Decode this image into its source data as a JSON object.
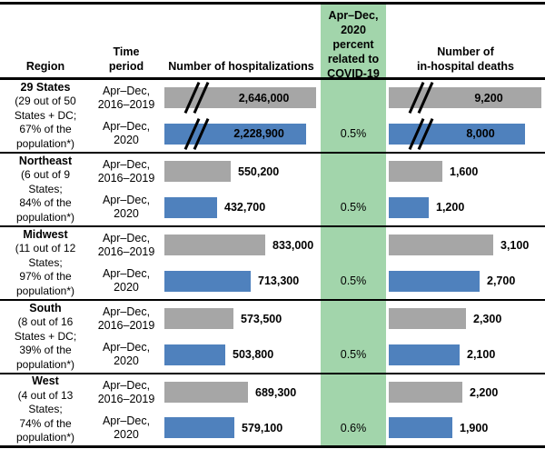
{
  "headers": {
    "region": "Region",
    "time_period": "Time\nperiod",
    "hospitalizations": "Number of hospitalizations",
    "covid_percent": "Apr–Dec,\n2020\npercent\nrelated to\nCOVID-19",
    "deaths": "Number of\nin-hospital deaths"
  },
  "colors": {
    "bar_2016_2019": "#a6a6a6",
    "bar_2020": "#4f81bd",
    "covid_column_bg": "#a2d5ab",
    "rule_lines": "#000000"
  },
  "regions": [
    {
      "name": "29 States",
      "details": "(29 out of 50\nStates + DC;\n67% of the\npopulation*)",
      "axis_break": true,
      "rows": [
        {
          "period": "Apr–Dec,\n2016–2019",
          "hospitalizations": "2,646,000",
          "deaths": "9,200",
          "covid_percent": ""
        },
        {
          "period": "Apr–Dec,\n2020",
          "hospitalizations": "2,228,900",
          "deaths": "8,000",
          "covid_percent": "0.5%"
        }
      ]
    },
    {
      "name": "Northeast",
      "details": "(6 out of 9\nStates;\n84% of the\npopulation*)",
      "axis_break": false,
      "rows": [
        {
          "period": "Apr–Dec,\n2016–2019",
          "hospitalizations": "550,200",
          "deaths": "1,600",
          "covid_percent": ""
        },
        {
          "period": "Apr–Dec,\n2020",
          "hospitalizations": "432,700",
          "deaths": "1,200",
          "covid_percent": "0.5%"
        }
      ]
    },
    {
      "name": "Midwest",
      "details": "(11 out of 12\nStates;\n97% of the\npopulation*)",
      "axis_break": false,
      "rows": [
        {
          "period": "Apr–Dec,\n2016–2019",
          "hospitalizations": "833,000",
          "deaths": "3,100",
          "covid_percent": ""
        },
        {
          "period": "Apr–Dec,\n2020",
          "hospitalizations": "713,300",
          "deaths": "2,700",
          "covid_percent": "0.5%"
        }
      ]
    },
    {
      "name": "South",
      "details": "(8 out of 16\nStates + DC;\n39% of the\npopulation*)",
      "axis_break": false,
      "rows": [
        {
          "period": "Apr–Dec,\n2016–2019",
          "hospitalizations": "573,500",
          "deaths": "2,300",
          "covid_percent": ""
        },
        {
          "period": "Apr–Dec,\n2020",
          "hospitalizations": "503,800",
          "deaths": "2,100",
          "covid_percent": ""
        }
      ]
    },
    {
      "name": "West",
      "details": "(4 out of 13\nStates;\n74% of the\npopulation*)",
      "axis_break": false,
      "rows": [
        {
          "period": "Apr–Dec,\n2016–2019",
          "hospitalizations": "689,300",
          "deaths": "2,200",
          "covid_percent": ""
        },
        {
          "period": "Apr–Dec,\n2020",
          "hospitalizations": "579,100",
          "deaths": "1,900",
          "covid_percent": "0.6%"
        }
      ]
    }
  ],
  "covid_percent_fix": {
    "south": "0.5%"
  },
  "chart_data": {
    "type": "bar",
    "title": "",
    "categories": [
      "29 States",
      "Northeast",
      "Midwest",
      "South",
      "West"
    ],
    "category_details": [
      "29 out of 50 States + DC; 67% of the population*",
      "6 out of 9 States; 84% of the population*",
      "11 out of 12 States; 97% of the population*",
      "8 out of 16 States + DC; 39% of the population*",
      "4 out of 13 States; 74% of the population*"
    ],
    "series": [
      {
        "name": "Number of hospitalizations, Apr–Dec, 2016–2019",
        "values": [
          2646000,
          550200,
          833000,
          573500,
          689300
        ]
      },
      {
        "name": "Number of hospitalizations, Apr–Dec, 2020",
        "values": [
          2228900,
          432700,
          713300,
          503800,
          579100
        ]
      },
      {
        "name": "Number of in-hospital deaths, Apr–Dec, 2016–2019",
        "values": [
          9200,
          1600,
          3100,
          2300,
          2200
        ]
      },
      {
        "name": "Number of in-hospital deaths, Apr–Dec, 2020",
        "values": [
          8000,
          1200,
          2700,
          2100,
          1900
        ]
      },
      {
        "name": "Apr–Dec, 2020 percent related to COVID-19",
        "values": [
          0.5,
          0.5,
          0.5,
          0.5,
          0.6
        ]
      }
    ],
    "orientation": "horizontal",
    "axis_break_rows": [
      "29 States"
    ],
    "grid": false,
    "legend_position": "none"
  }
}
